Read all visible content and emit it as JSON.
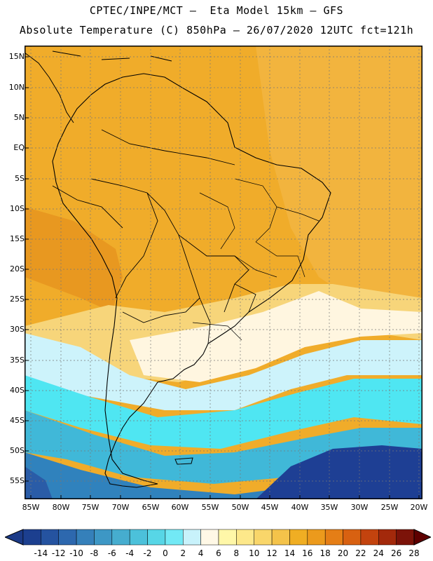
{
  "title_line1": "CPTEC/INPE/MCT –  Eta Model 15km – GFS",
  "title_line2": "Absolute Temperature (C) 850hPa – 26/07/2020 12UTC fct=121h",
  "lat_labels": [
    "15N",
    "10N",
    "5N",
    "EQ",
    "5S",
    "10S",
    "15S",
    "20S",
    "25S",
    "30S",
    "35S",
    "40S",
    "45S",
    "50S",
    "55S"
  ],
  "lon_labels": [
    "85W",
    "80W",
    "75W",
    "70W",
    "65W",
    "60W",
    "55W",
    "50W",
    "45W",
    "40W",
    "35W",
    "30W",
    "25W",
    "20W"
  ],
  "legend": {
    "labels": [
      "-14",
      "-12",
      "-10",
      "-8",
      "-6",
      "-4",
      "-2",
      "0",
      "2",
      "4",
      "6",
      "8",
      "10",
      "12",
      "14",
      "16",
      "18",
      "20",
      "22",
      "24",
      "26",
      "28"
    ],
    "colors": [
      "#1c3f8f",
      "#2553a0",
      "#2d68ae",
      "#3580ba",
      "#3d97c5",
      "#46adcf",
      "#4cc1da",
      "#57d6e6",
      "#72e9f5",
      "#c8f2fb",
      "#fff8e6",
      "#fff7a8",
      "#fde88a",
      "#f9d66a",
      "#f4c34a",
      "#f0ae23",
      "#ec9a1c",
      "#e57e16",
      "#d86111",
      "#c3430e",
      "#a3290b",
      "#7c1309"
    ],
    "min_arrow_color": "#1b3a87",
    "max_arrow_color": "#5e0000"
  },
  "colors": {
    "warm_orange": "#f0a923",
    "light_orange": "#f2b540",
    "yellow": "#f7d57a",
    "cream": "#fff6e0",
    "pale_cyan": "#cdf3fb",
    "cyan": "#4fe6f2",
    "teal": "#40b8d8",
    "blue": "#3082bd",
    "navy": "#1e3f94"
  }
}
